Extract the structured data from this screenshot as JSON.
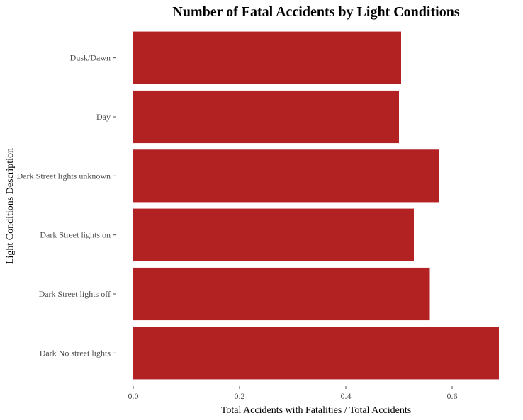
{
  "chart_data": {
    "type": "bar",
    "orientation": "horizontal",
    "title": "Number of Fatal Accidents by Light Conditions",
    "xlabel": "Total Accidents with Fatalities / Total Accidents",
    "ylabel": "Light Conditions Description",
    "categories": [
      "Dusk/Dawn",
      "Day",
      "Dark Street lights unknown",
      "Dark Street lights on",
      "Dark Street lights off",
      "Dark No street lights"
    ],
    "values": [
      0.504,
      0.5,
      0.575,
      0.528,
      0.558,
      0.688
    ],
    "xlim": [
      0,
      0.688
    ],
    "xticks": [
      0.0,
      0.2,
      0.4,
      0.6
    ],
    "xtick_labels": [
      "0.0",
      "0.2",
      "0.4",
      "0.6"
    ],
    "bar_color": "#b22222",
    "grid": false,
    "legend": "none"
  }
}
